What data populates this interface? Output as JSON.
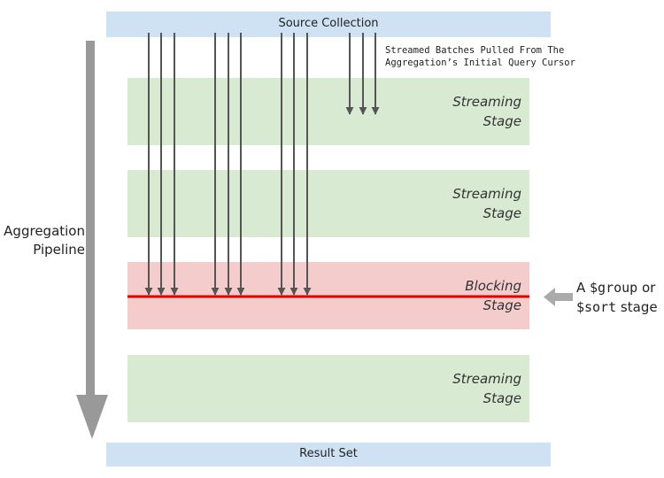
{
  "source": {
    "label": "Source Collection"
  },
  "result": {
    "label": "Result Set"
  },
  "caption": {
    "line1": "Streamed Batches Pulled From The",
    "line2": "Aggregation’s Initial Query Cursor"
  },
  "pipeline": {
    "line1": "Aggregation",
    "line2": "Pipeline"
  },
  "stages": [
    {
      "type": "streaming",
      "line1": "Streaming",
      "line2": "Stage"
    },
    {
      "type": "streaming",
      "line1": "Streaming",
      "line2": "Stage"
    },
    {
      "type": "blocking",
      "line1": "Blocking",
      "line2": "Stage"
    },
    {
      "type": "streaming",
      "line1": "Streaming",
      "line2": "Stage"
    }
  ],
  "note": {
    "prefix": "A ",
    "group_code": "$group",
    "middle": " or",
    "sort_code": "$sort",
    "suffix": " stage"
  },
  "colors": {
    "source_bar": "#cfe2f3",
    "streaming_stage": "#d9ead3",
    "blocking_stage": "#f4cccc",
    "blocking_line": "#e00000",
    "arrow": "#555555",
    "pipeline_arrow": "#999999",
    "note_arrow": "#aaaaaa"
  }
}
